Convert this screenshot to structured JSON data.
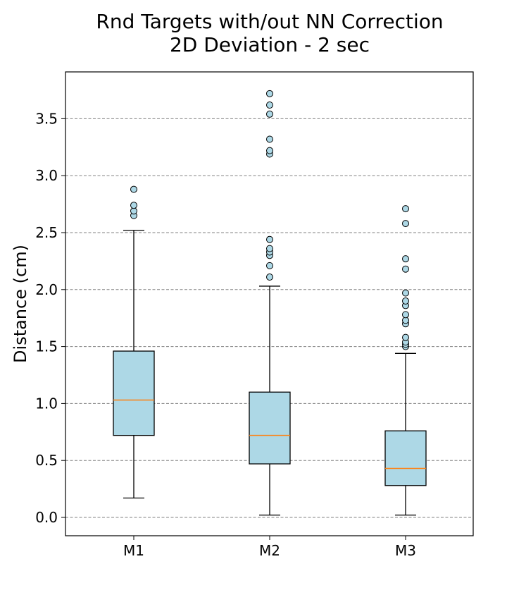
{
  "chart_data": {
    "type": "boxplot",
    "title": [
      "Rnd Targets with/out NN Correction",
      "2D Deviation - 2 sec"
    ],
    "xlabel": "",
    "ylabel": "Distance (cm)",
    "ylim": [
      -0.15,
      3.9
    ],
    "yticks": [
      0.0,
      0.5,
      1.0,
      1.5,
      2.0,
      2.5,
      3.0,
      3.5
    ],
    "ytick_labels": [
      "0.0",
      "0.5",
      "1.0",
      "1.5",
      "2.0",
      "2.5",
      "3.0",
      "3.5"
    ],
    "grid": "y-dashed",
    "categories": [
      "M1",
      "M2",
      "M3"
    ],
    "boxes": [
      {
        "name": "M1",
        "whisker_low": 0.17,
        "q1": 0.72,
        "median": 1.03,
        "q3": 1.46,
        "whisker_high": 2.52,
        "outliers": [
          2.65,
          2.69,
          2.74,
          2.88
        ]
      },
      {
        "name": "M2",
        "whisker_low": 0.02,
        "q1": 0.47,
        "median": 0.72,
        "q3": 1.1,
        "whisker_high": 2.03,
        "outliers": [
          2.11,
          2.21,
          2.3,
          2.33,
          2.36,
          2.44,
          3.19,
          3.22,
          3.32,
          3.54,
          3.62,
          3.72
        ]
      },
      {
        "name": "M3",
        "whisker_low": 0.02,
        "q1": 0.28,
        "median": 0.43,
        "q3": 0.76,
        "whisker_high": 1.44,
        "outliers": [
          1.5,
          1.52,
          1.54,
          1.58,
          1.7,
          1.73,
          1.78,
          1.86,
          1.9,
          1.97,
          2.18,
          2.27,
          2.58,
          2.71
        ]
      }
    ],
    "colors": {
      "box_fill": "#add8e6",
      "median": "#ff7f0e",
      "grid": "#808080",
      "outlier_fill": "#add8e6",
      "stroke": "#000000"
    }
  }
}
